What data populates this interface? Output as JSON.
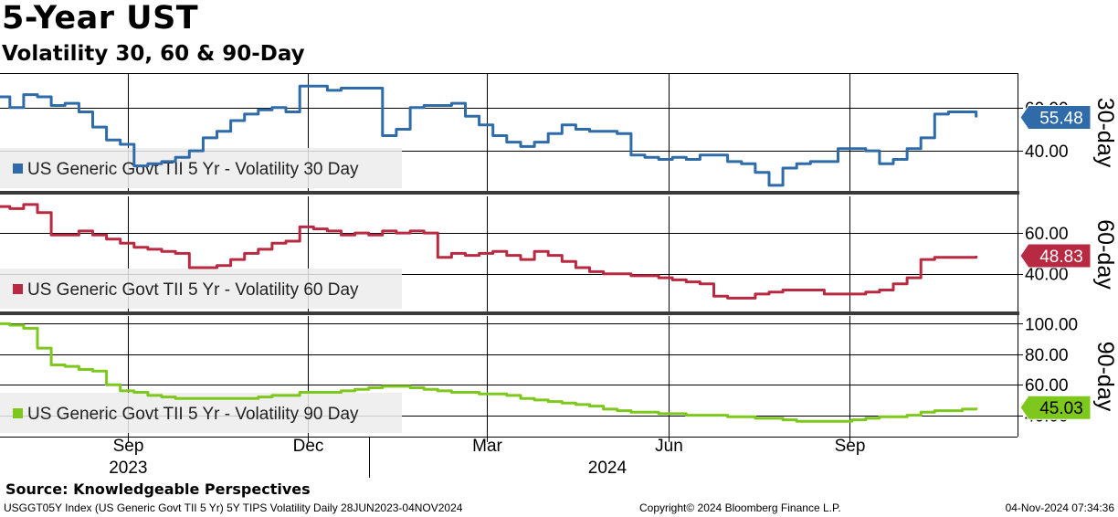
{
  "title": "5-Year UST",
  "subtitle": "Volatility 30, 60 & 90-Day",
  "source": "Source: Knowledgeable Perspectives",
  "footer": {
    "left": "USGGT05Y Index (US Generic Govt TII 5 Yr) 5Y TIPS Volatility  Daily 28JUN2023-04NOV2024",
    "center": "Copyright© 2024 Bloomberg Finance L.P.",
    "right": "04-Nov-2024 07:34:36"
  },
  "chart_data": [
    {
      "type": "line",
      "panel_label": "30-day",
      "legend": "US Generic Govt TII 5 Yr - Volatility 30 Day",
      "color": "#2e6ba8",
      "last_value": 55.48,
      "y_ticks": [
        40,
        60
      ],
      "y_tick_labels": [
        "40.00",
        "60.00"
      ],
      "ylim": [
        21,
        76
      ],
      "x": [
        "2023-06-28",
        "2023-07-03",
        "2023-07-10",
        "2023-07-17",
        "2023-07-24",
        "2023-07-31",
        "2023-08-07",
        "2023-08-14",
        "2023-08-21",
        "2023-08-28",
        "2023-09-04",
        "2023-09-11",
        "2023-09-18",
        "2023-09-25",
        "2023-10-02",
        "2023-10-09",
        "2023-10-16",
        "2023-10-23",
        "2023-10-30",
        "2023-11-06",
        "2023-11-13",
        "2023-11-20",
        "2023-11-27",
        "2023-12-04",
        "2023-12-11",
        "2023-12-18",
        "2023-12-25",
        "2024-01-01",
        "2024-01-08",
        "2024-01-15",
        "2024-01-22",
        "2024-01-29",
        "2024-02-05",
        "2024-02-12",
        "2024-02-19",
        "2024-02-26",
        "2024-03-04",
        "2024-03-11",
        "2024-03-18",
        "2024-03-25",
        "2024-04-01",
        "2024-04-08",
        "2024-04-15",
        "2024-04-22",
        "2024-04-29",
        "2024-05-06",
        "2024-05-13",
        "2024-05-20",
        "2024-05-27",
        "2024-06-03",
        "2024-06-10",
        "2024-06-17",
        "2024-06-24",
        "2024-07-01",
        "2024-07-08",
        "2024-07-15",
        "2024-07-22",
        "2024-07-29",
        "2024-08-05",
        "2024-08-12",
        "2024-08-19",
        "2024-08-26",
        "2024-09-02",
        "2024-09-09",
        "2024-09-16",
        "2024-09-23",
        "2024-09-30",
        "2024-10-07",
        "2024-10-14",
        "2024-10-21",
        "2024-10-28",
        "2024-11-04"
      ],
      "values": [
        65,
        60,
        66,
        65,
        61,
        62,
        58,
        51,
        45,
        43,
        33,
        34,
        35,
        37,
        40,
        46,
        49,
        54,
        57,
        59,
        60,
        58,
        70,
        70,
        68,
        69,
        69,
        69,
        47,
        50,
        60,
        61,
        61,
        62,
        56,
        52,
        47,
        44,
        42,
        44,
        48,
        52,
        50,
        49,
        49,
        48,
        38,
        37,
        36,
        37,
        36,
        38,
        38,
        35,
        34,
        30,
        24,
        32,
        34,
        35,
        35,
        41,
        41,
        40,
        34,
        36,
        41,
        46,
        57,
        58,
        58,
        55.48
      ]
    },
    {
      "type": "line",
      "panel_label": "60-day",
      "legend": "US Generic Govt TII 5 Yr - Volatility 60 Day",
      "color": "#b82a42",
      "last_value": 48.83,
      "y_ticks": [
        40,
        60
      ],
      "y_tick_labels": [
        "40.00",
        "60.00"
      ],
      "ylim": [
        21,
        78
      ],
      "x": [
        "2023-06-28",
        "2023-07-03",
        "2023-07-10",
        "2023-07-17",
        "2023-07-24",
        "2023-07-31",
        "2023-08-07",
        "2023-08-14",
        "2023-08-21",
        "2023-08-28",
        "2023-09-04",
        "2023-09-11",
        "2023-09-18",
        "2023-09-25",
        "2023-10-02",
        "2023-10-09",
        "2023-10-16",
        "2023-10-23",
        "2023-10-30",
        "2023-11-06",
        "2023-11-13",
        "2023-11-20",
        "2023-11-27",
        "2023-12-04",
        "2023-12-11",
        "2023-12-18",
        "2023-12-25",
        "2024-01-01",
        "2024-01-08",
        "2024-01-15",
        "2024-01-22",
        "2024-01-29",
        "2024-02-05",
        "2024-02-12",
        "2024-02-19",
        "2024-02-26",
        "2024-03-04",
        "2024-03-11",
        "2024-03-18",
        "2024-03-25",
        "2024-04-01",
        "2024-04-08",
        "2024-04-15",
        "2024-04-22",
        "2024-04-29",
        "2024-05-06",
        "2024-05-13",
        "2024-05-20",
        "2024-05-27",
        "2024-06-03",
        "2024-06-10",
        "2024-06-17",
        "2024-06-24",
        "2024-07-01",
        "2024-07-08",
        "2024-07-15",
        "2024-07-22",
        "2024-07-29",
        "2024-08-05",
        "2024-08-12",
        "2024-08-19",
        "2024-08-26",
        "2024-09-02",
        "2024-09-09",
        "2024-09-16",
        "2024-09-23",
        "2024-09-30",
        "2024-10-07",
        "2024-10-14",
        "2024-10-21",
        "2024-10-28",
        "2024-11-04"
      ],
      "values": [
        73,
        72,
        74,
        70,
        59,
        59,
        61,
        59,
        57,
        55,
        53,
        52,
        51,
        50,
        43,
        43,
        44,
        47,
        50,
        52,
        55,
        56,
        63,
        62,
        61,
        59,
        60,
        59,
        61,
        60,
        61,
        60,
        48,
        50,
        49,
        50,
        51,
        49,
        47,
        51,
        49,
        46,
        43,
        41,
        40,
        40,
        39,
        39,
        38,
        37,
        36,
        35,
        29,
        28,
        28,
        30,
        31,
        32,
        32,
        32,
        30,
        30,
        30,
        31,
        32,
        35,
        38,
        47,
        48,
        48,
        48,
        48.83
      ]
    },
    {
      "type": "line",
      "panel_label": "90-day",
      "legend": "US Generic Govt TII 5 Yr - Volatility 90 Day",
      "color": "#7ec81e",
      "last_value": 45.03,
      "y_ticks": [
        40,
        60,
        80,
        100
      ],
      "y_tick_labels": [
        "40.00",
        "60.00",
        "80.00",
        "100.00"
      ],
      "ylim": [
        26,
        105
      ],
      "x": [
        "2023-06-28",
        "2023-07-03",
        "2023-07-10",
        "2023-07-17",
        "2023-07-24",
        "2023-07-31",
        "2023-08-07",
        "2023-08-14",
        "2023-08-21",
        "2023-08-28",
        "2023-09-04",
        "2023-09-11",
        "2023-09-18",
        "2023-09-25",
        "2023-10-02",
        "2023-10-09",
        "2023-10-16",
        "2023-10-23",
        "2023-10-30",
        "2023-11-06",
        "2023-11-13",
        "2023-11-20",
        "2023-11-27",
        "2023-12-04",
        "2023-12-11",
        "2023-12-18",
        "2023-12-25",
        "2024-01-01",
        "2024-01-08",
        "2024-01-15",
        "2024-01-22",
        "2024-01-29",
        "2024-02-05",
        "2024-02-12",
        "2024-02-19",
        "2024-02-26",
        "2024-03-04",
        "2024-03-11",
        "2024-03-18",
        "2024-03-25",
        "2024-04-01",
        "2024-04-08",
        "2024-04-15",
        "2024-04-22",
        "2024-04-29",
        "2024-05-06",
        "2024-05-13",
        "2024-05-20",
        "2024-05-27",
        "2024-06-03",
        "2024-06-10",
        "2024-06-17",
        "2024-06-24",
        "2024-07-01",
        "2024-07-08",
        "2024-07-15",
        "2024-07-22",
        "2024-07-29",
        "2024-08-05",
        "2024-08-12",
        "2024-08-19",
        "2024-08-26",
        "2024-09-02",
        "2024-09-09",
        "2024-09-16",
        "2024-09-23",
        "2024-09-30",
        "2024-10-07",
        "2024-10-14",
        "2024-10-21",
        "2024-10-28",
        "2024-11-04"
      ],
      "values": [
        100,
        99,
        97,
        84,
        73,
        72,
        70,
        69,
        60,
        56,
        55,
        53,
        52,
        51,
        51,
        51,
        51,
        51,
        51,
        52,
        53,
        53,
        55,
        55,
        55,
        56,
        57,
        58,
        59,
        59,
        58,
        57,
        56,
        55,
        55,
        54,
        54,
        53,
        51,
        50,
        49,
        48,
        47,
        46,
        44,
        43,
        42,
        42,
        41,
        41,
        40,
        40,
        40,
        39,
        39,
        38,
        38,
        37,
        36,
        36,
        36,
        36,
        37,
        38,
        39,
        39,
        40,
        42,
        43,
        43,
        44,
        45.03
      ]
    }
  ],
  "x_axis": {
    "ticks": [
      {
        "date": "2023-09-01",
        "label": "Sep"
      },
      {
        "date": "2023-12-01",
        "label": "Dec"
      },
      {
        "date": "2024-03-01",
        "label": "Mar"
      },
      {
        "date": "2024-06-01",
        "label": "Jun"
      },
      {
        "date": "2024-09-01",
        "label": "Sep"
      }
    ],
    "years": [
      {
        "date": "2023-09-01",
        "label": "2023"
      },
      {
        "date": "2024-05-01",
        "label": "2024"
      }
    ],
    "year_separator": "2024-01-01",
    "range": [
      "2023-06-28",
      "2024-11-25"
    ]
  }
}
